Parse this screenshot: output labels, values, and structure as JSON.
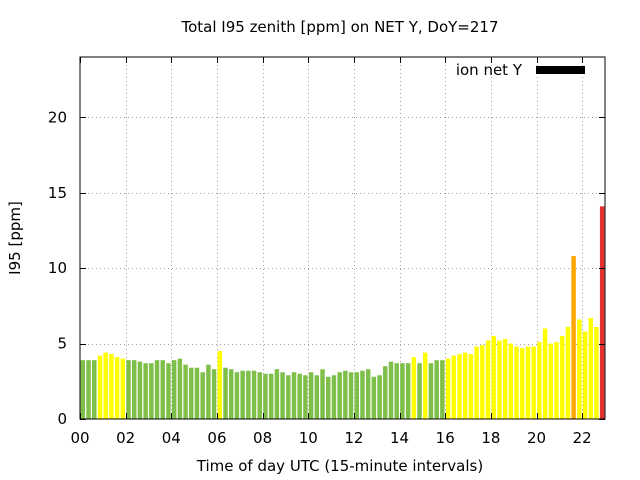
{
  "chart_data": {
    "type": "bar",
    "title": "Total I95 zenith [ppm] on NET Y, DoY=217",
    "xlabel": "Time of day UTC (15-minute intervals)",
    "ylabel": "I95 [ppm]",
    "xlim": [
      0,
      23
    ],
    "ylim": [
      0,
      24
    ],
    "grid": true,
    "legend_position": "top-right",
    "legend": [
      {
        "label": "ion net Y",
        "color": "#000000"
      }
    ],
    "x_ticks": [
      {
        "value": 0,
        "label": "00"
      },
      {
        "value": 2,
        "label": "02"
      },
      {
        "value": 4,
        "label": "04"
      },
      {
        "value": 6,
        "label": "06"
      },
      {
        "value": 8,
        "label": "08"
      },
      {
        "value": 10,
        "label": "10"
      },
      {
        "value": 12,
        "label": "12"
      },
      {
        "value": 14,
        "label": "14"
      },
      {
        "value": 16,
        "label": "16"
      },
      {
        "value": 18,
        "label": "18"
      },
      {
        "value": 20,
        "label": "20"
      },
      {
        "value": 22,
        "label": "22"
      }
    ],
    "y_ticks": [
      {
        "value": 0,
        "label": "0"
      },
      {
        "value": 5,
        "label": "5"
      },
      {
        "value": 10,
        "label": "10"
      },
      {
        "value": 15,
        "label": "15"
      },
      {
        "value": 20,
        "label": "20"
      }
    ],
    "interval_hours": 0.25,
    "level_colors": {
      "G": "#7dbf48",
      "Y": "#ffff00",
      "O": "#ffa500",
      "R": "#e03030"
    },
    "bars": [
      {
        "x": 0.0,
        "y": 3.9,
        "level": "G"
      },
      {
        "x": 0.25,
        "y": 3.9,
        "level": "G"
      },
      {
        "x": 0.5,
        "y": 3.9,
        "level": "G"
      },
      {
        "x": 0.75,
        "y": 4.2,
        "level": "Y"
      },
      {
        "x": 1.0,
        "y": 4.4,
        "level": "Y"
      },
      {
        "x": 1.25,
        "y": 4.3,
        "level": "Y"
      },
      {
        "x": 1.5,
        "y": 4.1,
        "level": "Y"
      },
      {
        "x": 1.75,
        "y": 4.0,
        "level": "Y"
      },
      {
        "x": 2.0,
        "y": 3.9,
        "level": "G"
      },
      {
        "x": 2.25,
        "y": 3.9,
        "level": "G"
      },
      {
        "x": 2.5,
        "y": 3.8,
        "level": "G"
      },
      {
        "x": 2.75,
        "y": 3.7,
        "level": "G"
      },
      {
        "x": 3.0,
        "y": 3.7,
        "level": "G"
      },
      {
        "x": 3.25,
        "y": 3.9,
        "level": "G"
      },
      {
        "x": 3.5,
        "y": 3.9,
        "level": "G"
      },
      {
        "x": 3.75,
        "y": 3.7,
        "level": "G"
      },
      {
        "x": 4.0,
        "y": 3.9,
        "level": "G"
      },
      {
        "x": 4.25,
        "y": 4.0,
        "level": "G"
      },
      {
        "x": 4.5,
        "y": 3.6,
        "level": "G"
      },
      {
        "x": 4.75,
        "y": 3.4,
        "level": "G"
      },
      {
        "x": 5.0,
        "y": 3.4,
        "level": "G"
      },
      {
        "x": 5.25,
        "y": 3.1,
        "level": "G"
      },
      {
        "x": 5.5,
        "y": 3.6,
        "level": "G"
      },
      {
        "x": 5.75,
        "y": 3.3,
        "level": "G"
      },
      {
        "x": 6.0,
        "y": 4.5,
        "level": "Y"
      },
      {
        "x": 6.25,
        "y": 3.4,
        "level": "G"
      },
      {
        "x": 6.5,
        "y": 3.3,
        "level": "G"
      },
      {
        "x": 6.75,
        "y": 3.1,
        "level": "G"
      },
      {
        "x": 7.0,
        "y": 3.2,
        "level": "G"
      },
      {
        "x": 7.25,
        "y": 3.2,
        "level": "G"
      },
      {
        "x": 7.5,
        "y": 3.2,
        "level": "G"
      },
      {
        "x": 7.75,
        "y": 3.1,
        "level": "G"
      },
      {
        "x": 8.0,
        "y": 3.0,
        "level": "G"
      },
      {
        "x": 8.25,
        "y": 3.0,
        "level": "G"
      },
      {
        "x": 8.5,
        "y": 3.3,
        "level": "G"
      },
      {
        "x": 8.75,
        "y": 3.1,
        "level": "G"
      },
      {
        "x": 9.0,
        "y": 2.9,
        "level": "G"
      },
      {
        "x": 9.25,
        "y": 3.1,
        "level": "G"
      },
      {
        "x": 9.5,
        "y": 3.0,
        "level": "G"
      },
      {
        "x": 9.75,
        "y": 2.9,
        "level": "G"
      },
      {
        "x": 10.0,
        "y": 3.1,
        "level": "G"
      },
      {
        "x": 10.25,
        "y": 2.9,
        "level": "G"
      },
      {
        "x": 10.5,
        "y": 3.3,
        "level": "G"
      },
      {
        "x": 10.75,
        "y": 2.8,
        "level": "G"
      },
      {
        "x": 11.0,
        "y": 2.9,
        "level": "G"
      },
      {
        "x": 11.25,
        "y": 3.1,
        "level": "G"
      },
      {
        "x": 11.5,
        "y": 3.2,
        "level": "G"
      },
      {
        "x": 11.75,
        "y": 3.1,
        "level": "G"
      },
      {
        "x": 12.0,
        "y": 3.1,
        "level": "G"
      },
      {
        "x": 12.25,
        "y": 3.2,
        "level": "G"
      },
      {
        "x": 12.5,
        "y": 3.3,
        "level": "G"
      },
      {
        "x": 12.75,
        "y": 2.8,
        "level": "G"
      },
      {
        "x": 13.0,
        "y": 2.9,
        "level": "G"
      },
      {
        "x": 13.25,
        "y": 3.5,
        "level": "G"
      },
      {
        "x": 13.5,
        "y": 3.8,
        "level": "G"
      },
      {
        "x": 13.75,
        "y": 3.7,
        "level": "G"
      },
      {
        "x": 14.0,
        "y": 3.7,
        "level": "G"
      },
      {
        "x": 14.25,
        "y": 3.7,
        "level": "G"
      },
      {
        "x": 14.5,
        "y": 4.1,
        "level": "Y"
      },
      {
        "x": 14.75,
        "y": 3.7,
        "level": "G"
      },
      {
        "x": 15.0,
        "y": 4.4,
        "level": "Y"
      },
      {
        "x": 15.25,
        "y": 3.7,
        "level": "G"
      },
      {
        "x": 15.5,
        "y": 3.9,
        "level": "G"
      },
      {
        "x": 15.75,
        "y": 3.9,
        "level": "G"
      },
      {
        "x": 16.0,
        "y": 4.0,
        "level": "Y"
      },
      {
        "x": 16.25,
        "y": 4.2,
        "level": "Y"
      },
      {
        "x": 16.5,
        "y": 4.3,
        "level": "Y"
      },
      {
        "x": 16.75,
        "y": 4.4,
        "level": "Y"
      },
      {
        "x": 17.0,
        "y": 4.3,
        "level": "Y"
      },
      {
        "x": 17.25,
        "y": 4.8,
        "level": "Y"
      },
      {
        "x": 17.5,
        "y": 4.9,
        "level": "Y"
      },
      {
        "x": 17.75,
        "y": 5.2,
        "level": "Y"
      },
      {
        "x": 18.0,
        "y": 5.5,
        "level": "Y"
      },
      {
        "x": 18.25,
        "y": 5.2,
        "level": "Y"
      },
      {
        "x": 18.5,
        "y": 5.3,
        "level": "Y"
      },
      {
        "x": 18.75,
        "y": 5.0,
        "level": "Y"
      },
      {
        "x": 19.0,
        "y": 4.8,
        "level": "Y"
      },
      {
        "x": 19.25,
        "y": 4.7,
        "level": "Y"
      },
      {
        "x": 19.5,
        "y": 4.8,
        "level": "Y"
      },
      {
        "x": 19.75,
        "y": 4.8,
        "level": "Y"
      },
      {
        "x": 20.0,
        "y": 5.1,
        "level": "Y"
      },
      {
        "x": 20.25,
        "y": 6.0,
        "level": "Y"
      },
      {
        "x": 20.5,
        "y": 5.0,
        "level": "Y"
      },
      {
        "x": 20.75,
        "y": 5.1,
        "level": "Y"
      },
      {
        "x": 21.0,
        "y": 5.5,
        "level": "Y"
      },
      {
        "x": 21.25,
        "y": 6.1,
        "level": "Y"
      },
      {
        "x": 21.5,
        "y": 10.8,
        "level": "O"
      },
      {
        "x": 21.75,
        "y": 6.6,
        "level": "Y"
      },
      {
        "x": 22.0,
        "y": 5.8,
        "level": "Y"
      },
      {
        "x": 22.25,
        "y": 6.7,
        "level": "Y"
      },
      {
        "x": 22.5,
        "y": 6.1,
        "level": "Y"
      },
      {
        "x": 22.75,
        "y": 14.1,
        "level": "R"
      }
    ]
  }
}
